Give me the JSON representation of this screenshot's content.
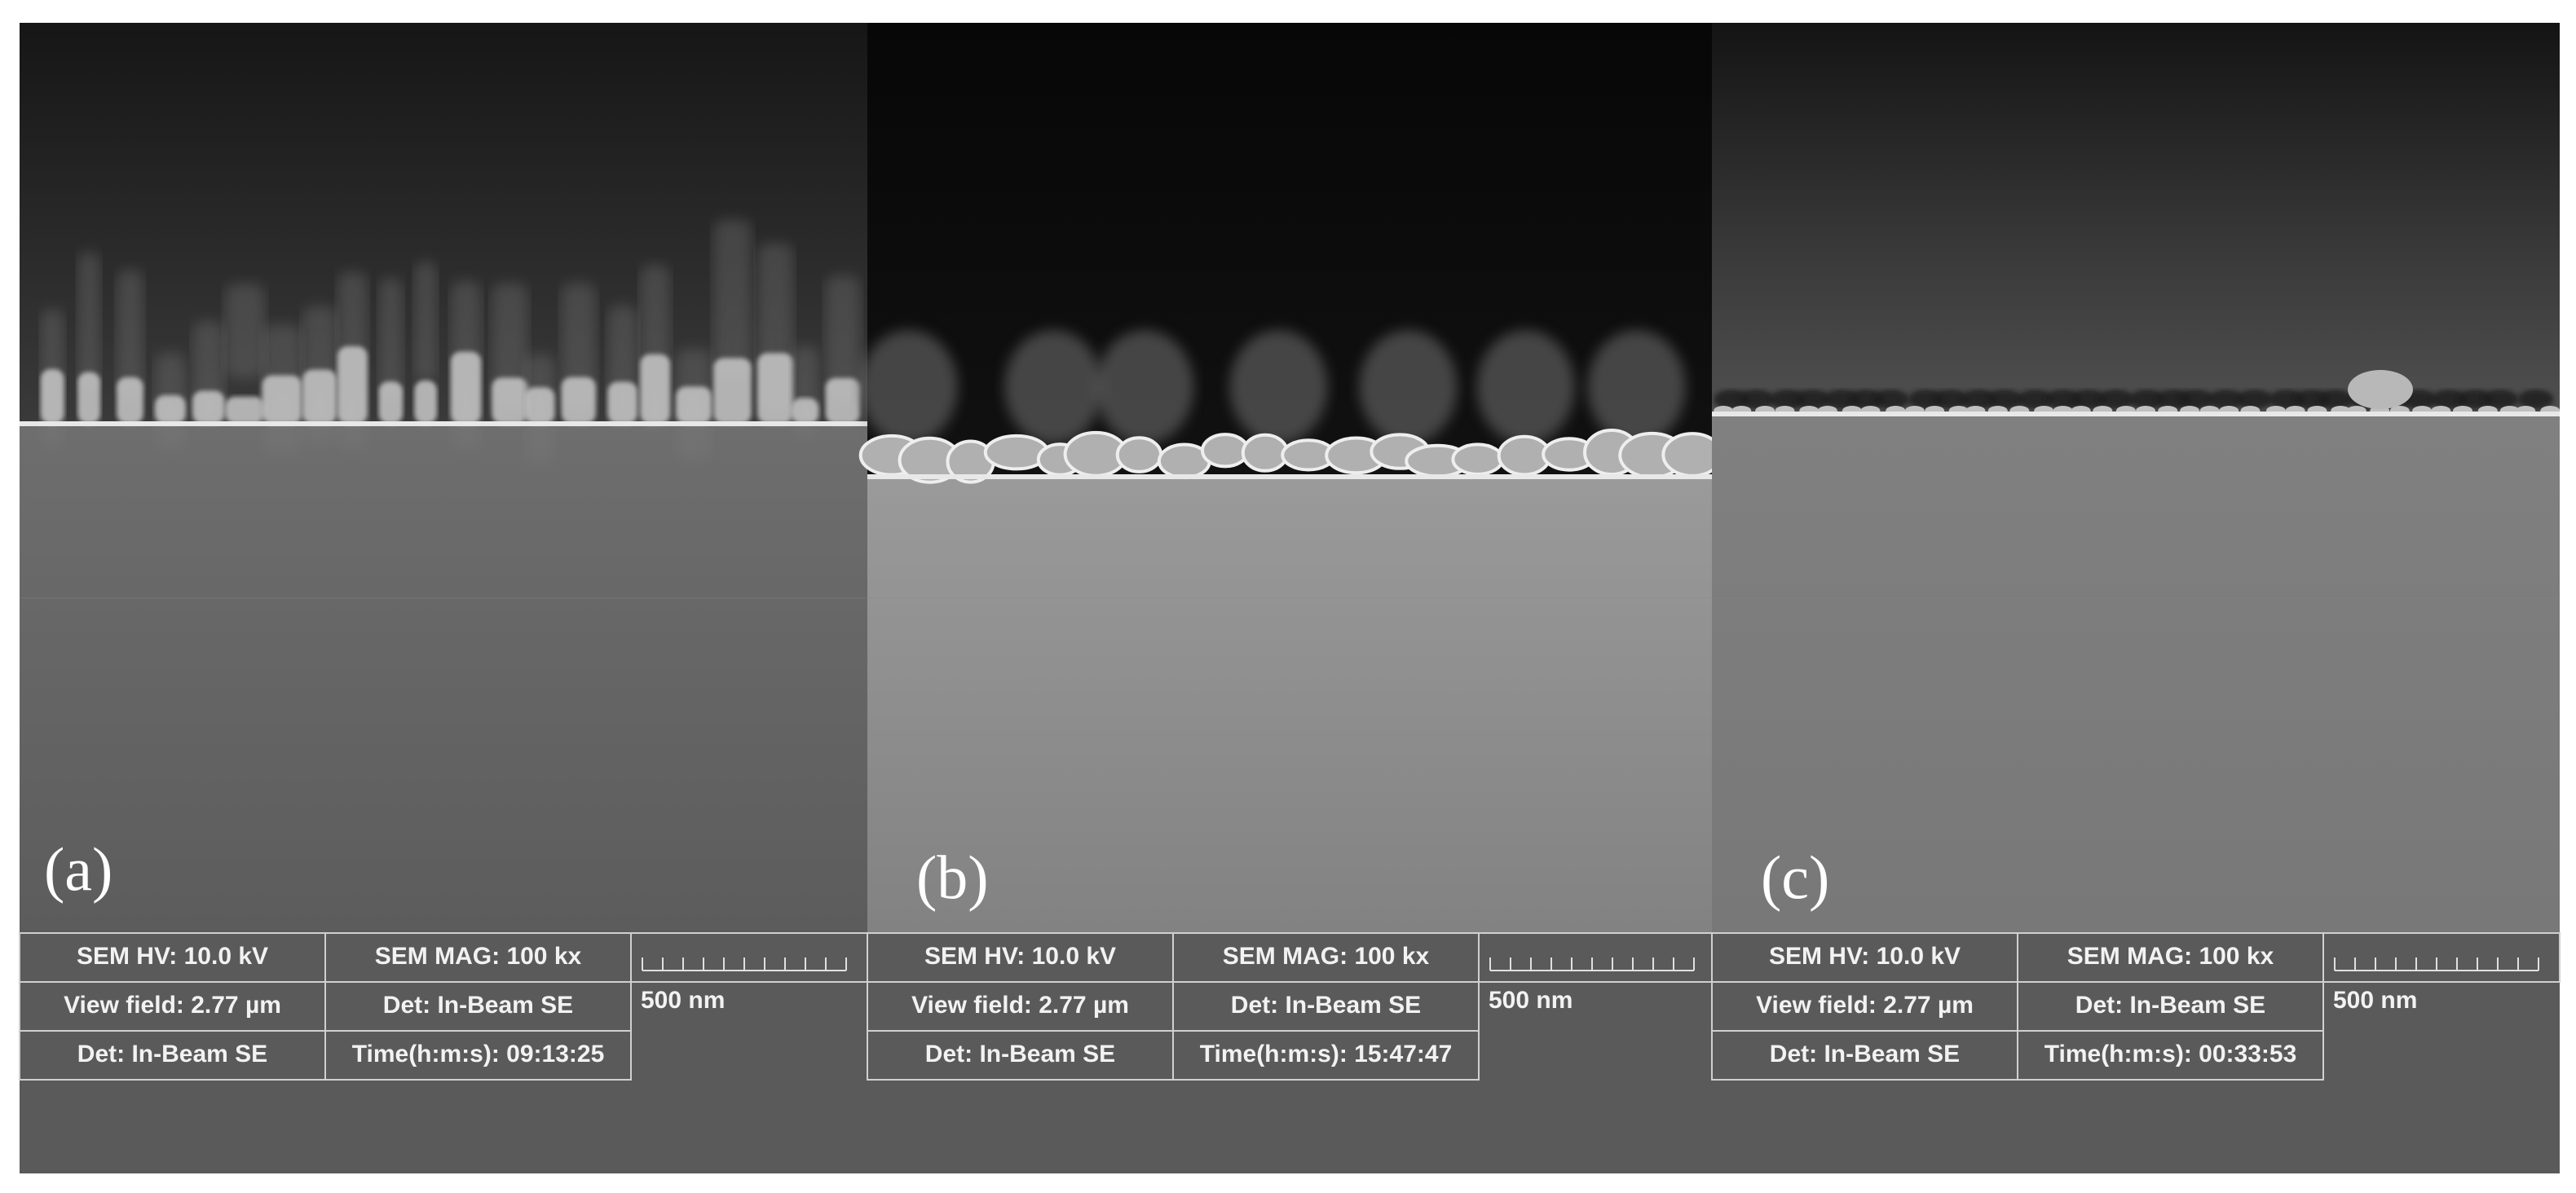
{
  "panels": [
    {
      "label": "(a)",
      "info": [
        [
          "SEM HV: 10.0 kV",
          "SEM MAG: 100 kx"
        ],
        [
          "View field: 2.77 µm",
          "Det: In-Beam SE"
        ],
        [
          "Det: In-Beam SE",
          "Time(h:m:s): 09:13:25"
        ]
      ],
      "scale_bar": "500 nm"
    },
    {
      "label": "(b)",
      "info": [
        [
          "SEM HV: 10.0 kV",
          "SEM MAG: 100 kx"
        ],
        [
          "View field: 2.77 µm",
          "Det: In-Beam SE"
        ],
        [
          "Det: In-Beam SE",
          "Time(h:m:s): 15:47:47"
        ]
      ],
      "scale_bar": "500 nm"
    },
    {
      "label": "(c)",
      "info": [
        [
          "SEM HV: 10.0 kV",
          "SEM MAG: 100 kx"
        ],
        [
          "View field: 2.77 µm",
          "Det: In-Beam SE"
        ],
        [
          "Det: In-Beam SE",
          "Time(h:m:s): 00:33:53"
        ]
      ],
      "scale_bar": "500 nm"
    }
  ]
}
